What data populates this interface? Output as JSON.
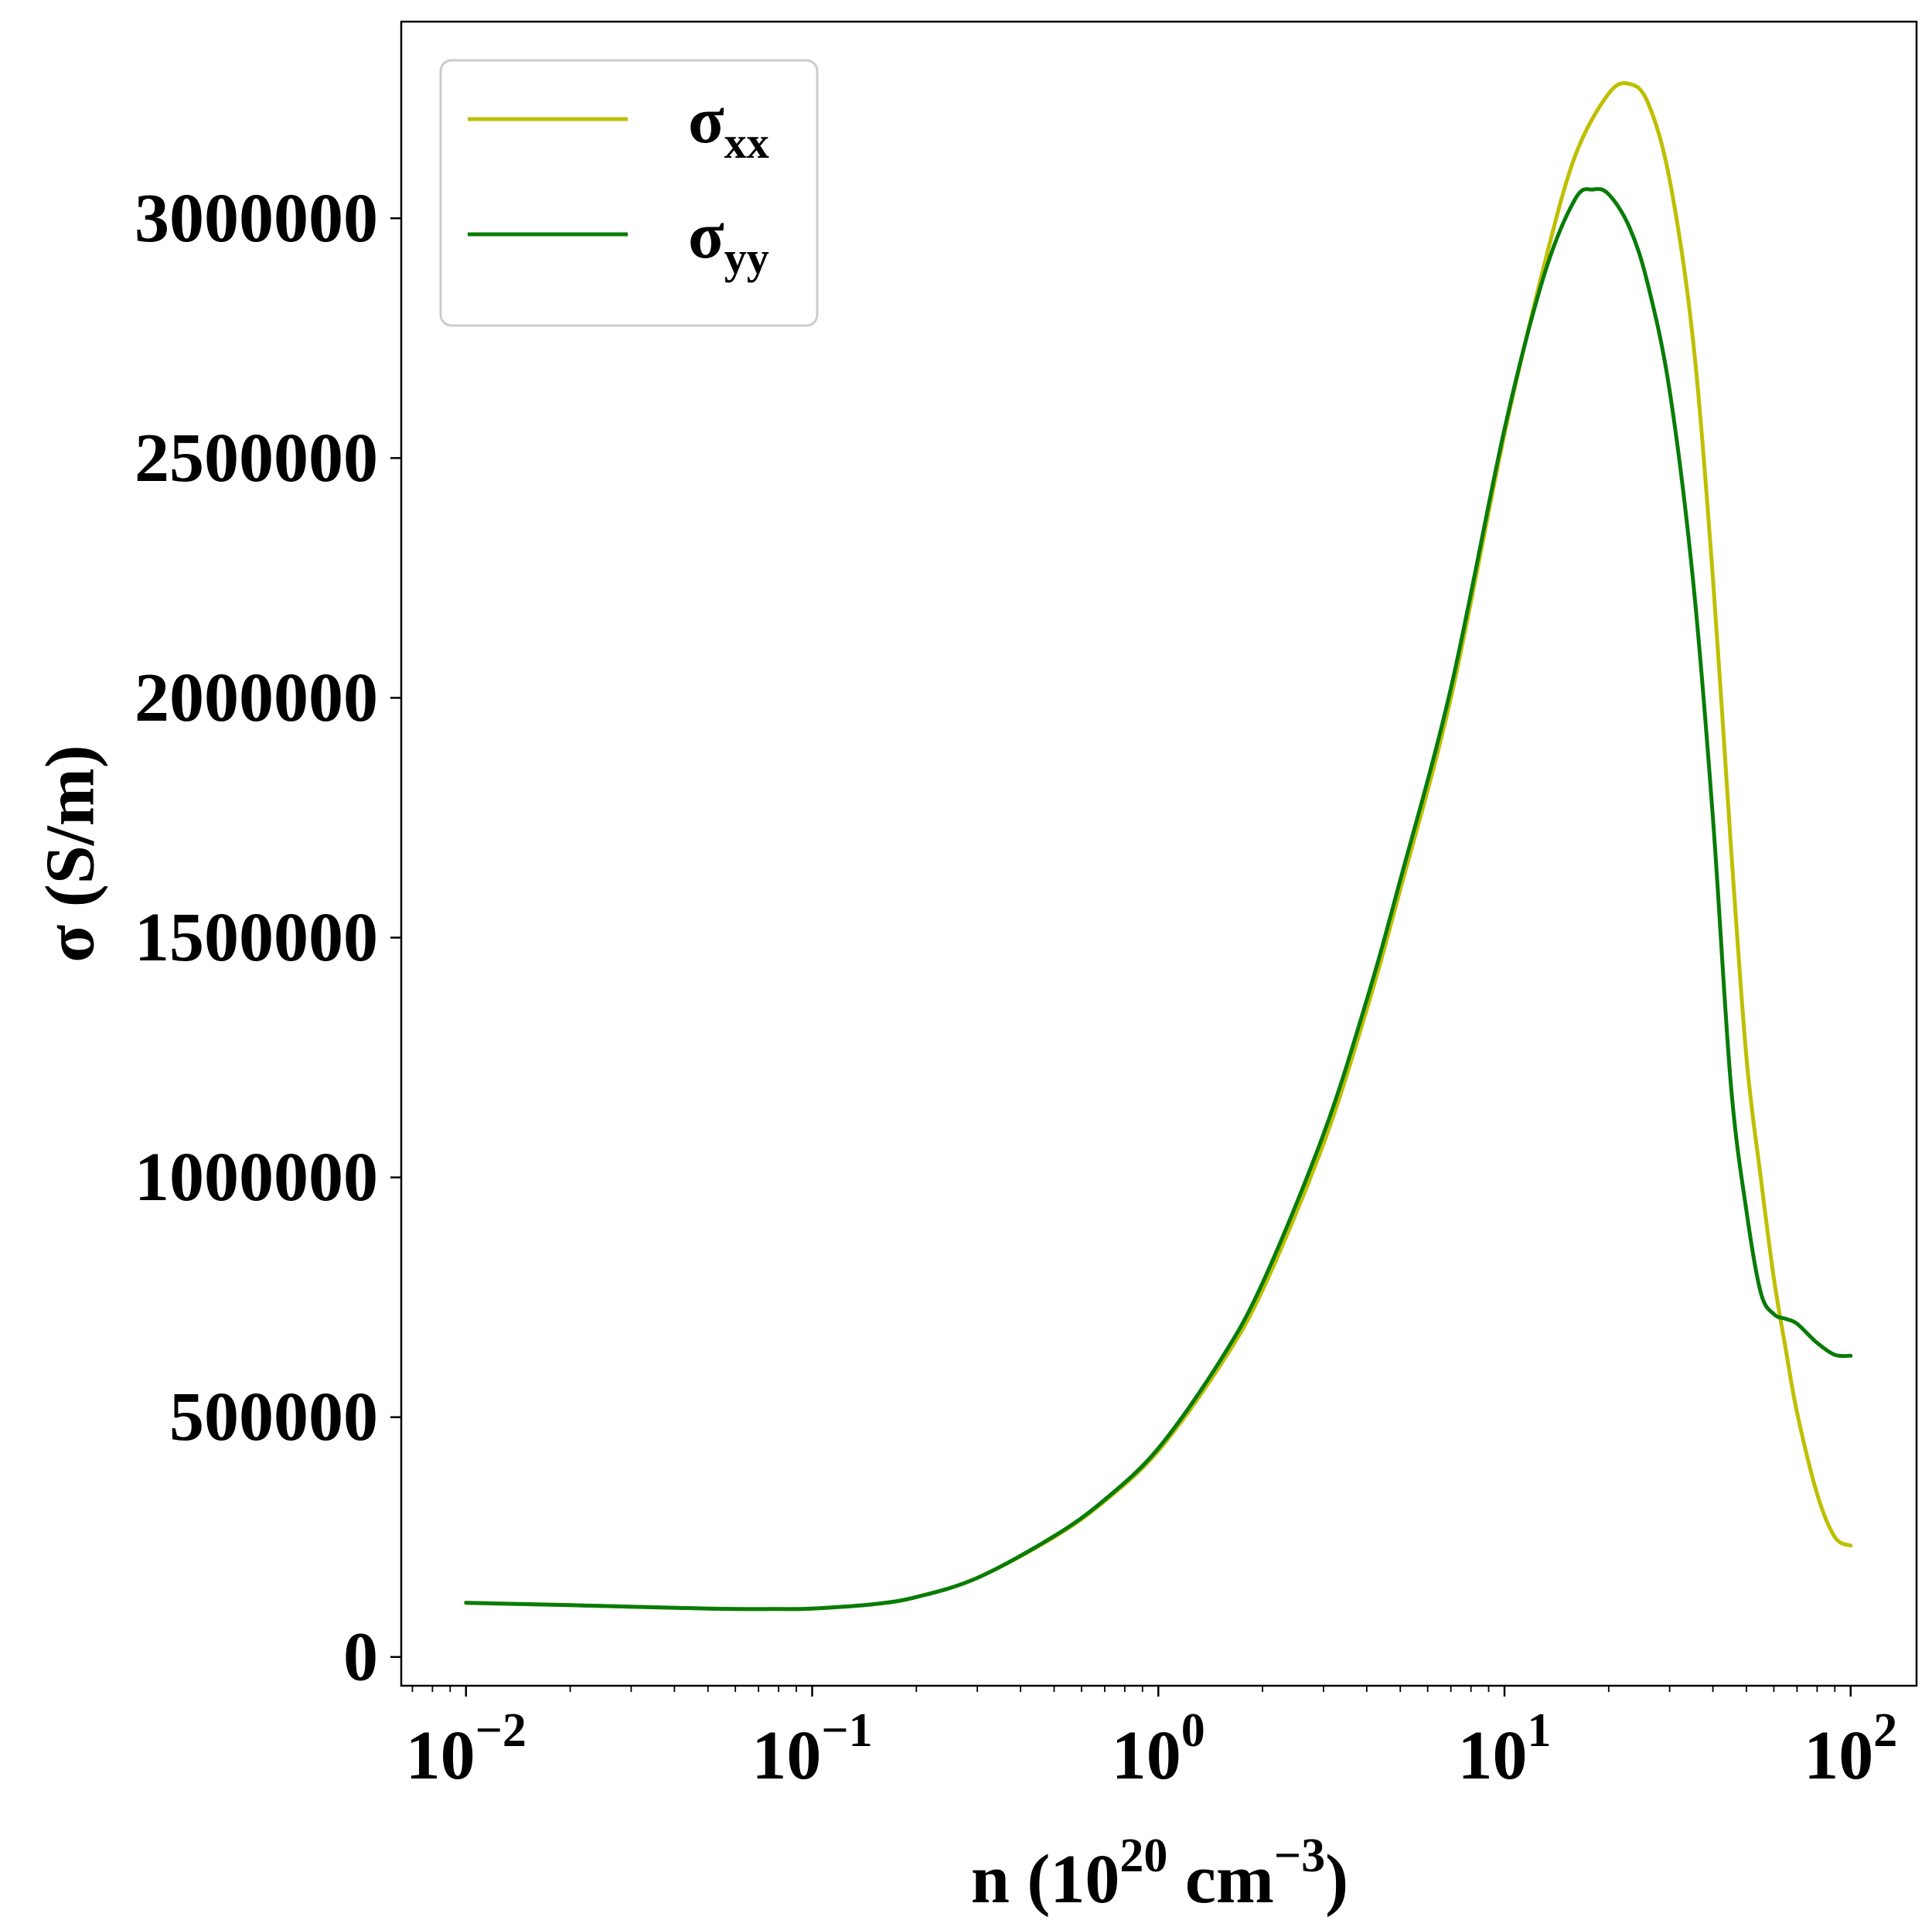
{
  "chart_data": {
    "type": "line",
    "title": "",
    "xlabel": {
      "base": "n (10",
      "exp1": "20",
      "mid": " cm",
      "exp2": "−3",
      "end": ")"
    },
    "ylabel": "σ (S/m)",
    "x_scale": "log",
    "xlim": [
      0.0065,
      155
    ],
    "ylim": [
      -60000,
      3410000
    ],
    "x_ticks": [
      {
        "value": 0.01,
        "base": "10",
        "exp": "−2"
      },
      {
        "value": 0.1,
        "base": "10",
        "exp": "−1"
      },
      {
        "value": 1,
        "base": "10",
        "exp": "0"
      },
      {
        "value": 10,
        "base": "10",
        "exp": "1"
      },
      {
        "value": 100,
        "base": "10",
        "exp": "2"
      }
    ],
    "y_ticks": [
      {
        "value": 0,
        "label": "0"
      },
      {
        "value": 500000,
        "label": "500000"
      },
      {
        "value": 1000000,
        "label": "1000000"
      },
      {
        "value": 1500000,
        "label": "1500000"
      },
      {
        "value": 2000000,
        "label": "2000000"
      },
      {
        "value": 2500000,
        "label": "2500000"
      },
      {
        "value": 3000000,
        "label": "3000000"
      }
    ],
    "grid": false,
    "legend": {
      "position": "top-left"
    },
    "series": [
      {
        "name": "σ",
        "sub": "xx",
        "color": "#bfbf00",
        "x": [
          0.01,
          0.02,
          0.05,
          0.08,
          0.1,
          0.15,
          0.2,
          0.3,
          0.5,
          0.7,
          1.0,
          1.5,
          2.0,
          3.0,
          4.0,
          5.0,
          7.0,
          10.0,
          13.0,
          16.0,
          20.0,
          23.0,
          26.0,
          30.0,
          35.0,
          40.0,
          45.0,
          50.0,
          55.0,
          60.0,
          65.0,
          70.0,
          80.0,
          90.0,
          100.0
        ],
        "y": [
          113000,
          108000,
          101000,
          100000,
          101000,
          110000,
          125000,
          165000,
          250000,
          325000,
          430000,
          605000,
          765000,
          1070000,
          1350000,
          1600000,
          2000000,
          2550000,
          2900000,
          3130000,
          3260000,
          3280000,
          3240000,
          3080000,
          2750000,
          2250000,
          1700000,
          1250000,
          1000000,
          790000,
          640000,
          510000,
          340000,
          250000,
          232000
        ]
      },
      {
        "name": "σ",
        "sub": "yy",
        "color": "#087c08",
        "x": [
          0.01,
          0.02,
          0.05,
          0.08,
          0.1,
          0.15,
          0.2,
          0.3,
          0.5,
          0.7,
          1.0,
          1.5,
          2.0,
          3.0,
          4.0,
          5.0,
          7.0,
          10.0,
          13.0,
          16.0,
          18.0,
          20.0,
          23.0,
          26.0,
          30.0,
          35.0,
          40.0,
          45.0,
          50.0,
          55.0,
          60.0,
          65.0,
          70.0,
          80.0,
          90.0,
          100.0
        ],
        "y": [
          113000,
          108000,
          101000,
          100000,
          101000,
          110000,
          125000,
          165000,
          252000,
          328000,
          435000,
          615000,
          780000,
          1090000,
          1370000,
          1620000,
          2020000,
          2560000,
          2880000,
          3040000,
          3060000,
          3050000,
          2980000,
          2860000,
          2640000,
          2250000,
          1750000,
          1200000,
          930000,
          760000,
          715000,
          705000,
          695000,
          655000,
          630000,
          628000
        ]
      }
    ]
  }
}
